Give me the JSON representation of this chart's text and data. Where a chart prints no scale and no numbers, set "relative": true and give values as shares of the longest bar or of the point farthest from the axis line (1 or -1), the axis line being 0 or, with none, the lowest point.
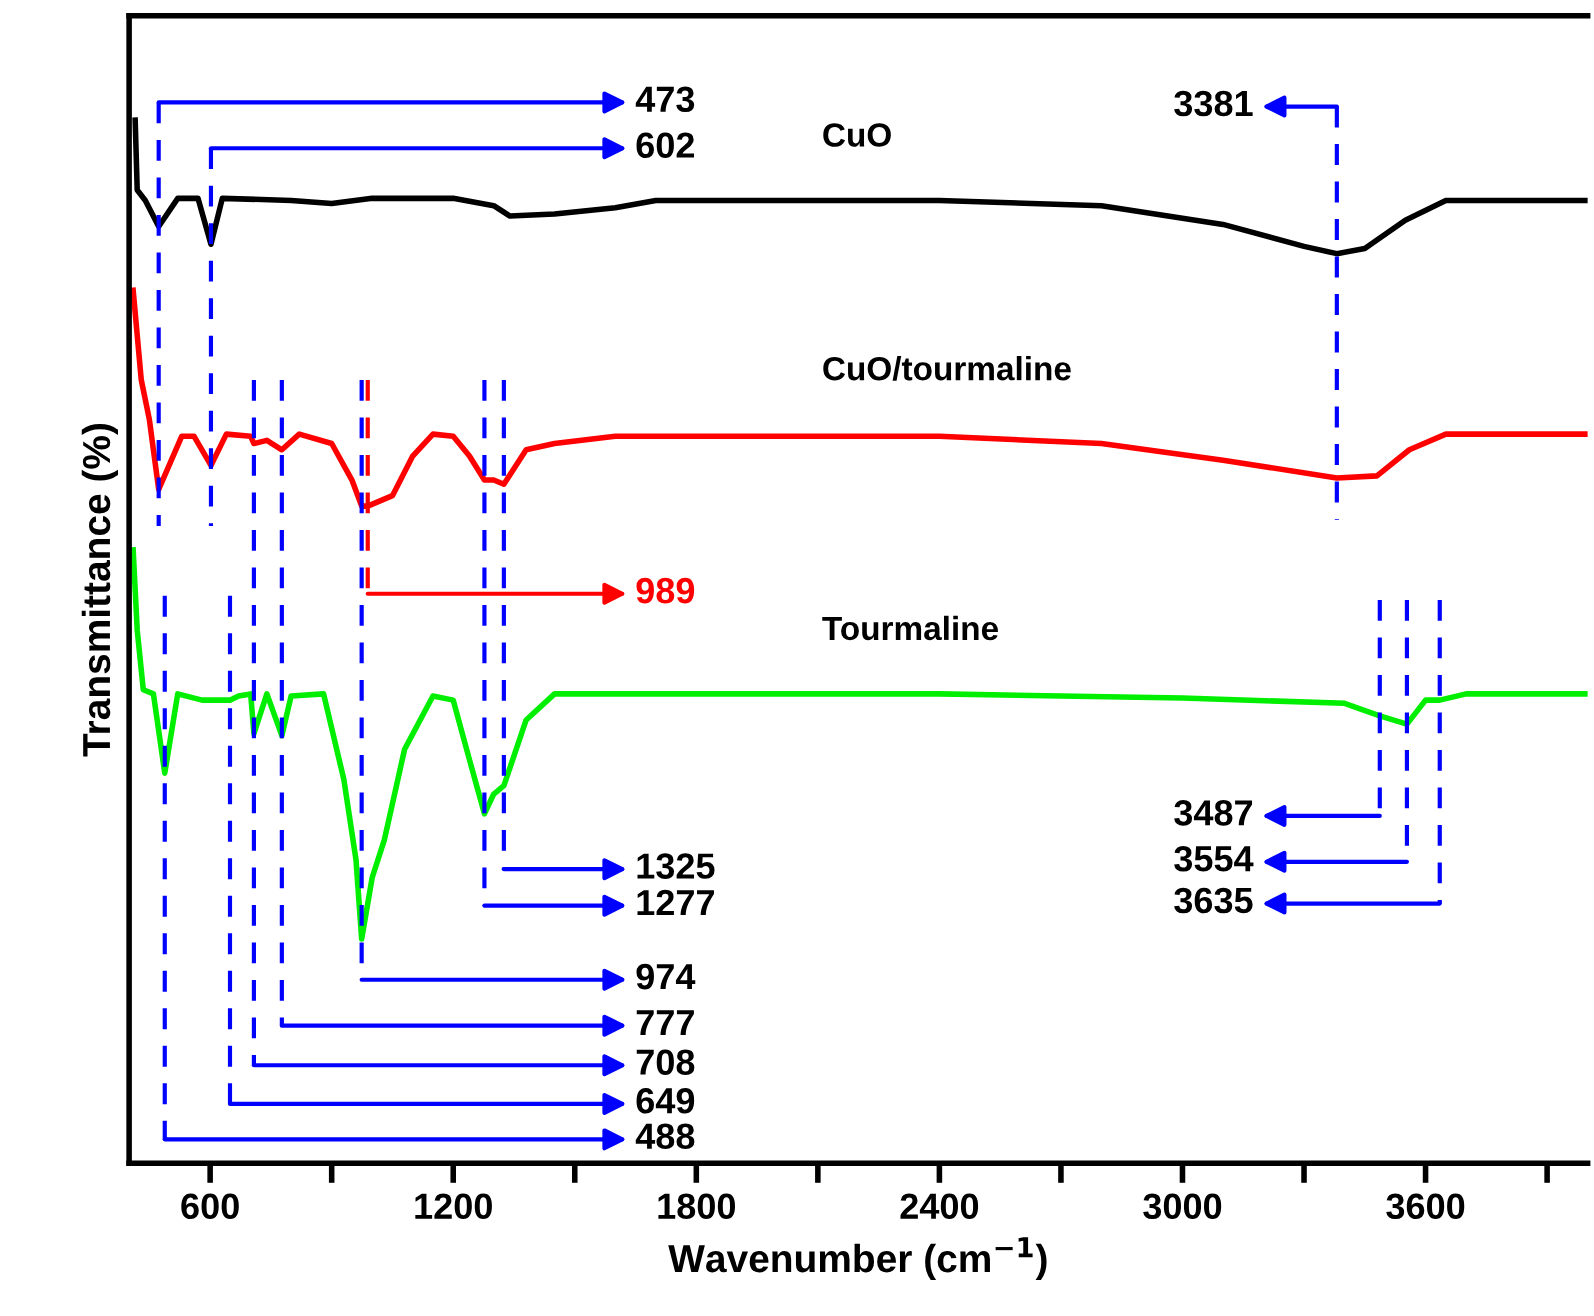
{
  "chart_data": {
    "type": "line",
    "relative": true,
    "xlabel": "Wavenumber (cm$^{−1}$)",
    "ylabel": "Transmittance (%)",
    "tick_labels": "x",
    "xlim": [
      400,
      4000
    ],
    "xticks": [
      600,
      {
        "value": 900,
        "label": null
      },
      1200,
      {
        "value": 1500,
        "label": null
      },
      1800,
      {
        "value": 2100,
        "label": null
      },
      2400,
      {
        "value": 2700,
        "label": null
      },
      3000,
      {
        "value": 3300,
        "label": null
      },
      3600,
      {
        "value": 3900,
        "label": null
      }
    ],
    "series": [
      {
        "name": "CuO",
        "color": "#000000",
        "x": [
          415,
          420,
          440,
          473,
          520,
          570,
          602,
          630,
          800,
          900,
          1000,
          1200,
          1300,
          1340,
          1450,
          1600,
          1700,
          2400,
          2800,
          3100,
          3300,
          3381,
          3450,
          3550,
          3650,
          4000
        ],
        "values": [
          1.0,
          0.933,
          0.923,
          0.898,
          0.925,
          0.925,
          0.881,
          0.925,
          0.923,
          0.92,
          0.925,
          0.925,
          0.918,
          0.908,
          0.91,
          0.916,
          0.923,
          0.923,
          0.918,
          0.9,
          0.879,
          0.872,
          0.877,
          0.904,
          0.923,
          0.923
        ]
      },
      {
        "name": "CuO/tourmaline",
        "color": "#ff0000",
        "x": [
          410,
          430,
          450,
          473,
          530,
          560,
          602,
          640,
          700,
          708,
          740,
          777,
          820,
          900,
          950,
          974,
          989,
          1050,
          1100,
          1150,
          1200,
          1240,
          1277,
          1300,
          1325,
          1380,
          1450,
          1600,
          2400,
          2800,
          3100,
          3381,
          3480,
          3560,
          3650,
          4000
        ],
        "values": [
          0.837,
          0.751,
          0.713,
          0.646,
          0.697,
          0.697,
          0.669,
          0.699,
          0.697,
          0.69,
          0.693,
          0.684,
          0.699,
          0.69,
          0.655,
          0.63,
          0.63,
          0.64,
          0.678,
          0.699,
          0.697,
          0.678,
          0.655,
          0.655,
          0.651,
          0.684,
          0.69,
          0.697,
          0.697,
          0.69,
          0.674,
          0.657,
          0.659,
          0.684,
          0.699,
          0.699
        ]
      },
      {
        "name": "Tourmaline",
        "color": "#00ee00",
        "x": [
          410,
          420,
          435,
          460,
          488,
          520,
          580,
          649,
          670,
          700,
          708,
          740,
          777,
          800,
          880,
          930,
          960,
          974,
          1000,
          1030,
          1080,
          1150,
          1200,
          1240,
          1277,
          1300,
          1325,
          1380,
          1450,
          2400,
          3000,
          3400,
          3487,
          3554,
          3600,
          3635,
          3700,
          4000
        ],
        "values": [
          0.588,
          0.511,
          0.454,
          0.45,
          0.374,
          0.45,
          0.444,
          0.444,
          0.448,
          0.45,
          0.412,
          0.45,
          0.41,
          0.448,
          0.45,
          0.368,
          0.291,
          0.215,
          0.274,
          0.31,
          0.397,
          0.448,
          0.444,
          0.387,
          0.335,
          0.354,
          0.362,
          0.425,
          0.45,
          0.45,
          0.446,
          0.441,
          0.429,
          0.421,
          0.444,
          0.444,
          0.45,
          0.45
        ]
      }
    ],
    "ref_lines": [
      {
        "axis": "x",
        "value": 473,
        "label": "473",
        "color": "#0000ff",
        "line_style": "dashed"
      },
      {
        "axis": "x",
        "value": 602,
        "label": "602",
        "color": "#0000ff",
        "line_style": "dashed"
      },
      {
        "axis": "x",
        "value": 3381,
        "label": "3381",
        "color": "#0000ff",
        "line_style": "dashed"
      },
      {
        "axis": "x",
        "value": 989,
        "label": "989",
        "color": "#ff0000",
        "line_style": "dashed"
      },
      {
        "axis": "x",
        "value": 1325,
        "label": "1325",
        "color": "#0000ff",
        "line_style": "dashed"
      },
      {
        "axis": "x",
        "value": 1277,
        "label": "1277",
        "color": "#0000ff",
        "line_style": "dashed"
      },
      {
        "axis": "x",
        "value": 974,
        "label": "974",
        "color": "#0000ff",
        "line_style": "dashed"
      },
      {
        "axis": "x",
        "value": 777,
        "label": "777",
        "color": "#0000ff",
        "line_style": "dashed"
      },
      {
        "axis": "x",
        "value": 708,
        "label": "708",
        "color": "#0000ff",
        "line_style": "dashed"
      },
      {
        "axis": "x",
        "value": 649,
        "label": "649",
        "color": "#0000ff",
        "line_style": "dashed"
      },
      {
        "axis": "x",
        "value": 488,
        "label": "488",
        "color": "#0000ff",
        "line_style": "dashed"
      },
      {
        "axis": "x",
        "value": 3487,
        "label": "3487",
        "color": "#0000ff",
        "line_style": "dashed"
      },
      {
        "axis": "x",
        "value": 3554,
        "label": "3554",
        "color": "#0000ff",
        "line_style": "dashed"
      },
      {
        "axis": "x",
        "value": 3635,
        "label": "3635",
        "color": "#0000ff",
        "line_style": "dashed"
      }
    ]
  }
}
